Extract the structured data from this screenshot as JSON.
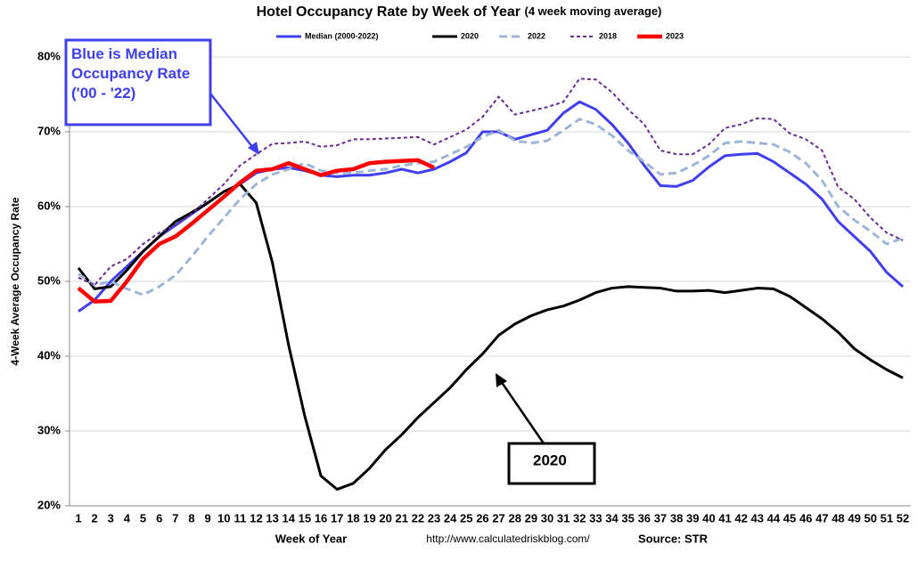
{
  "chart_data": {
    "type": "line",
    "title": "Hotel Occupancy Rate by  Week of Year",
    "subtitle": "(4 week moving average)",
    "xlabel": "Week of Year",
    "ylabel": "4-Week Average Occupancy Rate",
    "source_url": "http://www.calculatedriskblog.com/",
    "source": "Source: STR",
    "annotations": [
      "Blue is Median Occupancy Rate ('00 - '22)",
      "2020"
    ],
    "categories": [
      "1",
      "2",
      "3",
      "4",
      "5",
      "6",
      "7",
      "8",
      "9",
      "10",
      "11",
      "12",
      "13",
      "14",
      "15",
      "16",
      "17",
      "18",
      "19",
      "20",
      "21",
      "22",
      "23",
      "24",
      "25",
      "26",
      "27",
      "28",
      "29",
      "30",
      "31",
      "32",
      "33",
      "34",
      "35",
      "36",
      "37",
      "38",
      "39",
      "40",
      "41",
      "42",
      "43",
      "44",
      "45",
      "46",
      "47",
      "48",
      "49",
      "50",
      "51",
      "52"
    ],
    "ylim": [
      20,
      80
    ],
    "yticks": [
      {
        "value": 20,
        "label": "20%"
      },
      {
        "value": 30,
        "label": "30%"
      },
      {
        "value": 40,
        "label": "40%"
      },
      {
        "value": 50,
        "label": "50%"
      },
      {
        "value": 60,
        "label": "60%"
      },
      {
        "value": 70,
        "label": "70%"
      },
      {
        "value": 80,
        "label": "80%"
      }
    ],
    "grid": true,
    "legend": "top",
    "series": [
      {
        "name": "Median (2000-2022)",
        "color": "#3f3ff0",
        "line_style": "solid",
        "values": [
          46,
          47.5,
          50,
          52,
          54,
          56,
          57.5,
          59,
          60.5,
          62,
          63,
          64.5,
          65,
          65.2,
          64.8,
          64.2,
          64,
          64.2,
          64.2,
          64.5,
          65,
          64.5,
          65,
          66,
          67.2,
          70,
          70,
          69,
          69.6,
          70.2,
          72.5,
          74,
          73,
          71,
          68.5,
          65.5,
          62.8,
          62.7,
          63.5,
          65.3,
          66.8,
          67,
          67.1,
          66,
          64.5,
          63,
          61,
          58,
          56,
          54,
          51.2,
          49.3
        ]
      },
      {
        "name": "2020",
        "color": "#000000",
        "line_style": "solid",
        "values": [
          51.8,
          49,
          49.3,
          51.5,
          54,
          56,
          58,
          59.2,
          60.5,
          62,
          63,
          60.5,
          52.5,
          41.5,
          32,
          24,
          22.2,
          23,
          25,
          27.5,
          29.5,
          31.8,
          33.8,
          35.8,
          38.2,
          40.3,
          42.8,
          44.3,
          45.4,
          46.2,
          46.7,
          47.5,
          48.5,
          49.1,
          49.3,
          49.2,
          49.1,
          48.7,
          48.7,
          48.8,
          48.5,
          48.8,
          49.1,
          49,
          48,
          46.5,
          45,
          43.2,
          41,
          39.5,
          38.2,
          37.1
        ]
      },
      {
        "name": "2022",
        "color": "#9db6d8",
        "line_style": "dashed",
        "values": [
          51,
          49.5,
          50,
          49,
          48.2,
          49.3,
          50.8,
          53.3,
          56,
          58.5,
          61,
          63,
          64.3,
          65,
          65.8,
          64.8,
          64.5,
          64.5,
          64.8,
          65,
          65.5,
          65.8,
          66,
          67,
          68,
          69.3,
          70.2,
          68.8,
          68.5,
          68.8,
          70.2,
          71.7,
          71,
          69.5,
          67.5,
          66,
          64.3,
          64.5,
          65.5,
          66.8,
          68.5,
          68.7,
          68.5,
          68.3,
          67.3,
          65.8,
          63.5,
          60,
          58.2,
          56.7,
          55,
          55.8
        ]
      },
      {
        "name": "2018",
        "color": "#6a2c91",
        "line_style": "dotted",
        "values": [
          50.5,
          49.5,
          52,
          53,
          55,
          56.5,
          57.5,
          59,
          61,
          63,
          65.5,
          67,
          68.4,
          68.5,
          68.7,
          68,
          68.2,
          69,
          69,
          69.1,
          69.2,
          69.3,
          68.3,
          69.3,
          70.3,
          72,
          74.7,
          72.3,
          72.8,
          73.3,
          74,
          77.1,
          77,
          75.3,
          73,
          71,
          67.5,
          67,
          67,
          68.3,
          70.5,
          71,
          71.8,
          71.7,
          69.8,
          69,
          67.5,
          62.6,
          61,
          58.5,
          56.5,
          55.5
        ]
      },
      {
        "name": "2023",
        "color": "#ff0000",
        "line_style": "thick",
        "values": [
          49.1,
          47.3,
          47.4,
          50,
          53,
          55,
          56,
          57.7,
          59.5,
          61.3,
          63.2,
          64.8,
          65,
          65.8,
          65,
          64.2,
          64.8,
          65,
          65.8,
          66,
          66.1,
          66.2,
          65.2,
          null,
          null,
          null,
          null,
          null,
          null,
          null,
          null,
          null,
          null,
          null,
          null,
          null,
          null,
          null,
          null,
          null,
          null,
          null,
          null,
          null,
          null,
          null,
          null,
          null,
          null,
          null,
          null,
          null
        ]
      }
    ]
  }
}
